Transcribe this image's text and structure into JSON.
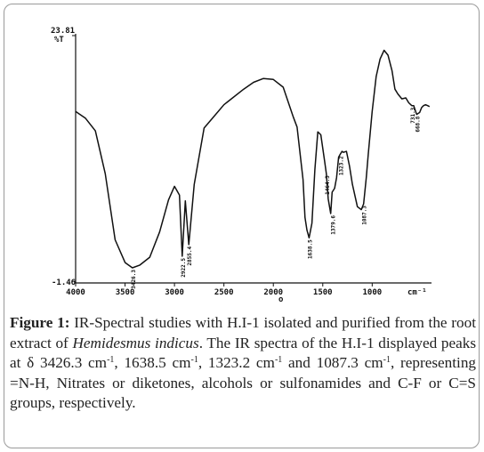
{
  "chart_data": {
    "type": "line",
    "y_top_label": "23.81",
    "y_unit_label": "%T",
    "y_bottom_label": "-1.46",
    "ylim": [
      -1.46,
      23.81
    ],
    "xlim": [
      4000,
      400
    ],
    "x_reversed": true,
    "x_ticks": [
      {
        "value": 4000,
        "label": "4000"
      },
      {
        "value": 3500,
        "label": "3500"
      },
      {
        "value": 3000,
        "label": "3000"
      },
      {
        "value": 2500,
        "label": "2500"
      },
      {
        "value": 2000,
        "label": "2000"
      },
      {
        "value": 1500,
        "label": "1500"
      },
      {
        "value": 1000,
        "label": "1000"
      }
    ],
    "x_unit_label": "cm⁻¹",
    "x_axis_mark": "o",
    "grid": false,
    "series": [
      {
        "x": [
          4000,
          3900,
          3800,
          3700,
          3600,
          3500,
          3426,
          3350,
          3250,
          3150,
          3060,
          3000,
          2950,
          2922,
          2890,
          2855,
          2800,
          2700,
          2500,
          2300,
          2200,
          2100,
          2000,
          1900,
          1800,
          1760,
          1700,
          1680,
          1660,
          1638,
          1610,
          1580,
          1550,
          1520,
          1480,
          1464,
          1445,
          1420,
          1405,
          1380,
          1360,
          1340,
          1323,
          1305,
          1290,
          1260,
          1230,
          1200,
          1150,
          1110,
          1087,
          1060,
          1040,
          1000,
          960,
          920,
          880,
          840,
          800,
          770,
          740,
          700,
          660,
          630,
          600,
          580,
          550,
          520,
          500,
          480,
          460,
          440,
          420
        ],
        "y": [
          16.0,
          15.3,
          14.0,
          9.6,
          2.8,
          0.45,
          -0.09,
          0.2,
          1.0,
          3.6,
          6.9,
          8.3,
          7.4,
          1.1,
          6.8,
          2.3,
          8.5,
          14.3,
          16.7,
          18.3,
          19.0,
          19.4,
          19.3,
          18.5,
          15.5,
          14.4,
          9.0,
          5.1,
          3.8,
          3.0,
          4.5,
          10.0,
          13.9,
          13.6,
          10.8,
          9.6,
          7.0,
          5.5,
          7.7,
          8.1,
          9.2,
          11.3,
          11.6,
          11.9,
          11.8,
          11.9,
          10.4,
          8.5,
          6.2,
          5.9,
          6.5,
          9.2,
          11.6,
          16.0,
          19.6,
          21.4,
          22.3,
          21.8,
          20.2,
          18.3,
          17.8,
          17.3,
          17.4,
          16.9,
          16.6,
          16.6,
          15.7,
          15.9,
          16.4,
          16.6,
          16.7,
          16.6,
          16.5
        ]
      }
    ],
    "peak_labels": [
      {
        "x": 3426,
        "y": -0.09,
        "label": "3426.3"
      },
      {
        "x": 2922,
        "y": 1.1,
        "label": "2922.5"
      },
      {
        "x": 2855,
        "y": 2.3,
        "label": "2855.4"
      },
      {
        "x": 1638,
        "y": 3.0,
        "label": "1638.5"
      },
      {
        "x": 1464,
        "y": 9.6,
        "label": "1464.3"
      },
      {
        "x": 1405,
        "y": 5.5,
        "label": "1379.6"
      },
      {
        "x": 1323,
        "y": 11.6,
        "label": "1323.2"
      },
      {
        "x": 1087,
        "y": 6.5,
        "label": "1087.3"
      },
      {
        "x": 600,
        "y": 16.6,
        "label": "731.3"
      },
      {
        "x": 550,
        "y": 15.7,
        "label": "668.8"
      }
    ]
  },
  "caption": {
    "label": "Figure 1:",
    "t1": " IR-Spectral studies with H.I-1 isolated and purified from the root extract of ",
    "species": "Hemidesmus indicus",
    "t2": ". The IR spectra of the H.I-1 displayed peaks at δ 3426.3 cm",
    "s1": "-1",
    "t3": ", 1638.5 cm",
    "s2": "-1",
    "t4": ", 1323.2 cm",
    "s3": "-1",
    "t5": " and 1087.3 cm",
    "s4": "-1",
    "t6": ", representing =N-H, Nitrates or diketones, alcohols or sulfonamides and C-F or C=S groups, respectively."
  }
}
